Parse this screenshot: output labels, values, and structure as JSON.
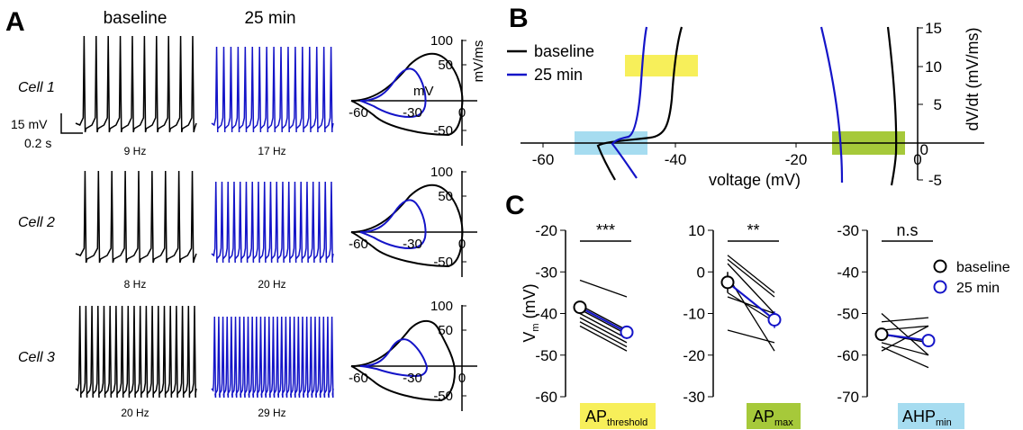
{
  "colors": {
    "baseline": "#000000",
    "treatment": "#1414c8",
    "yellow": "#f7ef5a",
    "green": "#a6c93a",
    "blue": "#a6dcf0"
  },
  "panelA": {
    "letter": "A",
    "col_baseline": "baseline",
    "col_treatment": "25 min",
    "scale_mv": "15 mV",
    "scale_s": "0.2 s",
    "cells": [
      {
        "name": "Cell 1",
        "base_hz": "9 Hz",
        "trt_hz": "17 Hz",
        "base_n": 10,
        "trt_n": 17
      },
      {
        "name": "Cell 2",
        "base_hz": "8 Hz",
        "trt_hz": "20 Hz",
        "base_n": 9,
        "trt_n": 20
      },
      {
        "name": "Cell 3",
        "base_hz": "20 Hz",
        "trt_hz": "29 Hz",
        "base_n": 20,
        "trt_n": 29
      }
    ],
    "phase": {
      "x_ticks": [
        "-60",
        "-30",
        "0"
      ],
      "y_ticks": [
        "100",
        "50",
        "-50"
      ],
      "x_unit": "mV",
      "y_unit": "mV/ms"
    }
  },
  "panelB": {
    "letter": "B",
    "legend": [
      "baseline",
      "25 min"
    ],
    "xlabel": "voltage (mV)",
    "ylabel": "dV/dt (mV/ms)",
    "x_ticks": [
      "-60",
      "-40",
      "-20",
      "0"
    ],
    "y_ticks": [
      "15",
      "10",
      "5",
      "0",
      "-5"
    ]
  },
  "panelC": {
    "letter": "C",
    "ylabel_main": "V",
    "ylabel_sub": "m",
    "ylabel_unit": " (mV)",
    "legend": [
      "baseline",
      "25 min"
    ],
    "panels": [
      {
        "sig": "***",
        "label_main": "AP",
        "label_sub": "threshold",
        "ticks": [
          "-20",
          "-30",
          "-40",
          "-50",
          "-60"
        ],
        "ylim": [
          -60,
          -20
        ],
        "pairs": [
          [
            -32,
            -36
          ],
          [
            -38,
            -44
          ],
          [
            -39,
            -45
          ],
          [
            -40,
            -46
          ],
          [
            -41,
            -47
          ],
          [
            -42,
            -48
          ],
          [
            -43,
            -49
          ]
        ],
        "mean": [
          -38.5,
          -44.5
        ],
        "err": [
          1.2,
          1.6
        ]
      },
      {
        "sig": "**",
        "label_main": "AP",
        "label_sub": "max",
        "ticks": [
          "10",
          "0",
          "-10",
          "-20",
          "-30"
        ],
        "ylim": [
          -30,
          10
        ],
        "pairs": [
          [
            4,
            -5
          ],
          [
            3,
            -6
          ],
          [
            2,
            -10
          ],
          [
            -1,
            -19
          ],
          [
            -5,
            -12
          ],
          [
            -6,
            -10
          ],
          [
            -14,
            -17
          ]
        ],
        "mean": [
          -2.5,
          -11.5
        ],
        "err": [
          2.5,
          2.0
        ]
      },
      {
        "sig": "n.s",
        "label_main": "AHP",
        "label_sub": "min",
        "ticks": [
          "-30",
          "-40",
          "-50",
          "-60",
          "-70"
        ],
        "ylim": [
          -70,
          -30
        ],
        "pairs": [
          [
            -50,
            -60
          ],
          [
            -52,
            -51
          ],
          [
            -54,
            -53
          ],
          [
            -55,
            -57
          ],
          [
            -57,
            -60
          ],
          [
            -58,
            -63
          ],
          [
            -59,
            -53
          ]
        ],
        "mean": [
          -55.0,
          -56.5
        ],
        "err": [
          1.2,
          1.5
        ]
      }
    ]
  }
}
